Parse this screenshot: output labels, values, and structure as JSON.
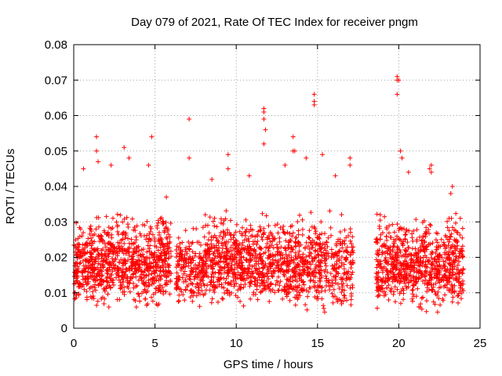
{
  "chart_data": {
    "type": "scatter",
    "title": "Day 079 of 2021, Rate Of TEC Index for receiver pngm",
    "xlabel": "GPS time / hours",
    "ylabel": "ROTI / TECUs",
    "xlim": [
      0,
      25
    ],
    "ylim": [
      0,
      0.08
    ],
    "xticks": [
      0,
      5,
      10,
      15,
      20,
      25
    ],
    "xtick_labels": [
      "0",
      "5",
      "10",
      "15",
      "20",
      "25"
    ],
    "yticks": [
      0,
      0.01,
      0.02,
      0.03,
      0.04,
      0.05,
      0.06,
      0.07,
      0.08
    ],
    "ytick_labels": [
      "0",
      "0.01",
      "0.02",
      "0.03",
      "0.04",
      "0.05",
      "0.06",
      "0.07",
      "0.08"
    ],
    "grid": true,
    "marker": "+",
    "color": "#ff0000",
    "data_gap_hours": [
      17.3,
      18.5
    ],
    "series": [
      {
        "name": "ROTI",
        "segments": [
          {
            "x_range": [
              0.0,
              6.0
            ],
            "y_range": [
              0.004,
              0.034
            ],
            "count": 900
          },
          {
            "x_range": [
              6.3,
              8.0
            ],
            "y_range": [
              0.005,
              0.03
            ],
            "count": 200
          },
          {
            "x_range": [
              8.0,
              12.0
            ],
            "y_range": [
              0.005,
              0.034
            ],
            "count": 560
          },
          {
            "x_range": [
              12.0,
              17.2
            ],
            "y_range": [
              0.003,
              0.034
            ],
            "count": 640
          },
          {
            "x_range": [
              18.6,
              24.0
            ],
            "y_range": [
              0.004,
              0.033
            ],
            "count": 780
          }
        ],
        "outliers": [
          {
            "x": 0.6,
            "y": 0.045
          },
          {
            "x": 1.4,
            "y": 0.054
          },
          {
            "x": 1.4,
            "y": 0.05
          },
          {
            "x": 1.5,
            "y": 0.047
          },
          {
            "x": 2.3,
            "y": 0.046
          },
          {
            "x": 3.1,
            "y": 0.051
          },
          {
            "x": 3.4,
            "y": 0.048
          },
          {
            "x": 4.6,
            "y": 0.046
          },
          {
            "x": 4.8,
            "y": 0.054
          },
          {
            "x": 7.1,
            "y": 0.059
          },
          {
            "x": 7.1,
            "y": 0.048
          },
          {
            "x": 9.5,
            "y": 0.049
          },
          {
            "x": 9.5,
            "y": 0.045
          },
          {
            "x": 11.7,
            "y": 0.062
          },
          {
            "x": 11.7,
            "y": 0.061
          },
          {
            "x": 11.7,
            "y": 0.059
          },
          {
            "x": 11.8,
            "y": 0.056
          },
          {
            "x": 11.7,
            "y": 0.052
          },
          {
            "x": 13.5,
            "y": 0.054
          },
          {
            "x": 13.5,
            "y": 0.05
          },
          {
            "x": 13.6,
            "y": 0.05
          },
          {
            "x": 14.8,
            "y": 0.066
          },
          {
            "x": 14.8,
            "y": 0.064
          },
          {
            "x": 14.8,
            "y": 0.063
          },
          {
            "x": 15.3,
            "y": 0.049
          },
          {
            "x": 17.0,
            "y": 0.048
          },
          {
            "x": 17.0,
            "y": 0.046
          },
          {
            "x": 19.9,
            "y": 0.071
          },
          {
            "x": 19.9,
            "y": 0.07
          },
          {
            "x": 20.0,
            "y": 0.07
          },
          {
            "x": 19.9,
            "y": 0.066
          },
          {
            "x": 20.1,
            "y": 0.05
          },
          {
            "x": 20.2,
            "y": 0.048
          },
          {
            "x": 20.6,
            "y": 0.044
          },
          {
            "x": 22.0,
            "y": 0.046
          },
          {
            "x": 22.0,
            "y": 0.044
          },
          {
            "x": 21.9,
            "y": 0.045
          },
          {
            "x": 23.3,
            "y": 0.04
          },
          {
            "x": 23.2,
            "y": 0.038
          },
          {
            "x": 16.1,
            "y": 0.043
          },
          {
            "x": 14.3,
            "y": 0.048
          },
          {
            "x": 10.8,
            "y": 0.043
          },
          {
            "x": 5.7,
            "y": 0.037
          },
          {
            "x": 8.5,
            "y": 0.042
          },
          {
            "x": 13.0,
            "y": 0.046
          }
        ]
      }
    ]
  }
}
